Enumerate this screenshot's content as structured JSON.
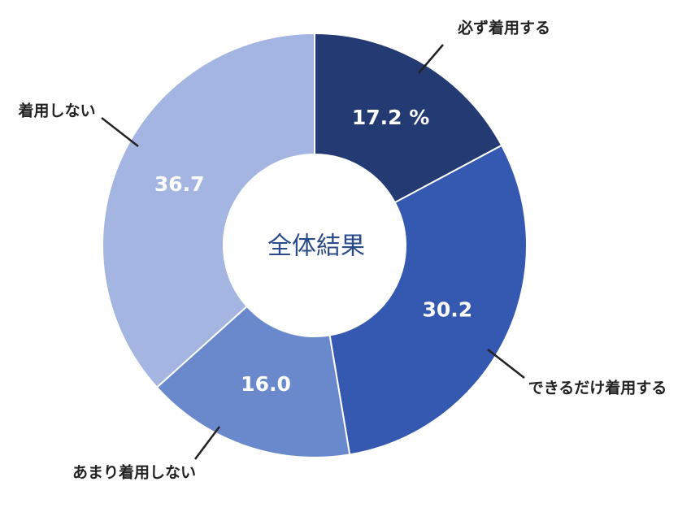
{
  "chart_data": {
    "type": "donut",
    "title": "全体結果",
    "categories": [
      "必ず着用する",
      "できるだけ着用する",
      "あまり着用しない",
      "着用しない"
    ],
    "values": [
      17.2,
      30.2,
      16.0,
      36.7
    ],
    "value_labels": [
      "17.2 %",
      "30.2",
      "16.0",
      "36.7"
    ],
    "colors": [
      "#243a72",
      "#3558b0",
      "#6a88cc",
      "#a3b5e0"
    ]
  }
}
